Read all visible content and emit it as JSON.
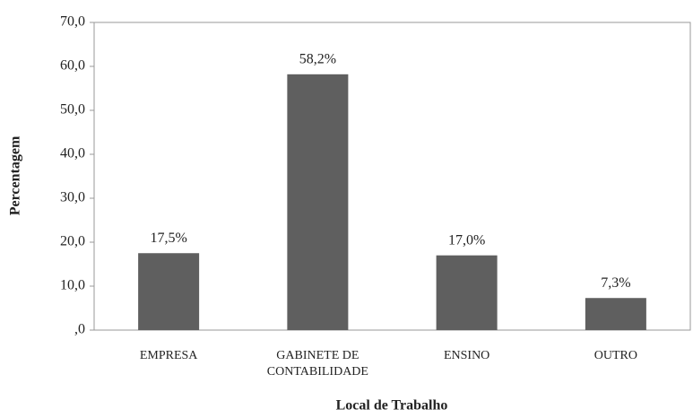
{
  "chart_data": {
    "type": "bar",
    "x_label": "Local de Trabalho",
    "y_label": "Percentagem",
    "categories": [
      "EMPRESA",
      "GABINETE DE CONTABILIDADE",
      "ENSINO",
      "OUTRO"
    ],
    "values": [
      17.5,
      58.2,
      17.0,
      7.3
    ],
    "value_labels": [
      "17,5%",
      "58,2%",
      "17,0%",
      "7,3%"
    ],
    "color": "#5f5f5f",
    "ylim": [
      0,
      70
    ],
    "yticks": [
      {
        "value": 0,
        "label": ",0"
      },
      {
        "value": 10,
        "label": "10,0"
      },
      {
        "value": 20,
        "label": "20,0"
      },
      {
        "value": 30,
        "label": "30,0"
      },
      {
        "value": 40,
        "label": "40,0"
      },
      {
        "value": 50,
        "label": "50,0"
      },
      {
        "value": 60,
        "label": "60,0"
      },
      {
        "value": 70,
        "label": "70,0"
      }
    ],
    "grid": false
  }
}
